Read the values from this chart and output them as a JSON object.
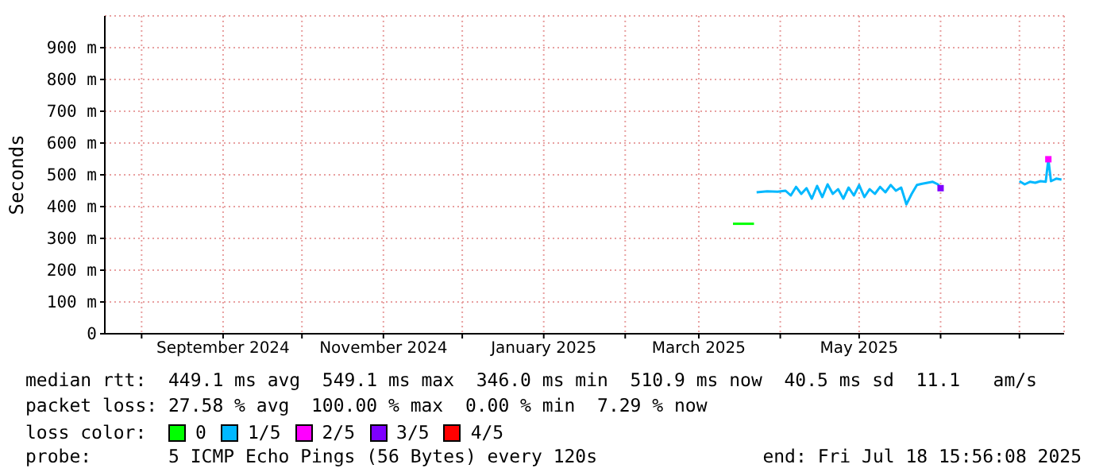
{
  "chart_data": {
    "type": "line",
    "ylabel": "Seconds",
    "legend_title": "loss color:",
    "legend": "bottom",
    "grid": true,
    "marker": "none",
    "line_style": "solid",
    "xlim": [
      "2024-07-18",
      "2025-07-18"
    ],
    "xticks": [
      {
        "value": "2024-08-01",
        "label": null
      },
      {
        "value": "2024-09-01",
        "label": "September 2024"
      },
      {
        "value": "2024-10-01",
        "label": null
      },
      {
        "value": "2024-11-01",
        "label": "November 2024"
      },
      {
        "value": "2024-12-01",
        "label": null
      },
      {
        "value": "2025-01-01",
        "label": "January 2025"
      },
      {
        "value": "2025-02-01",
        "label": null
      },
      {
        "value": "2025-03-01",
        "label": "March 2025"
      },
      {
        "value": "2025-04-01",
        "label": null
      },
      {
        "value": "2025-05-01",
        "label": "May 2025"
      },
      {
        "value": "2025-06-01",
        "label": null
      },
      {
        "value": "2025-07-01",
        "label": null
      }
    ],
    "ylim": [
      0,
      1000
    ],
    "yticks": [
      {
        "value": 0,
        "label": "0"
      },
      {
        "value": 100,
        "label": "100 m"
      },
      {
        "value": 200,
        "label": "200 m"
      },
      {
        "value": 300,
        "label": "300 m"
      },
      {
        "value": 400,
        "label": "400 m"
      },
      {
        "value": 500,
        "label": "500 m"
      },
      {
        "value": 600,
        "label": "600 m"
      },
      {
        "value": 700,
        "label": "700 m"
      },
      {
        "value": 800,
        "label": "800 m"
      },
      {
        "value": 900,
        "label": "900 m"
      }
    ],
    "series": [
      {
        "name": "0",
        "color": "#00ff00",
        "x": [
          "2025-03-14",
          "2025-03-18",
          "2025-03-22"
        ],
        "values": [
          346,
          346,
          346
        ]
      },
      {
        "name": "1/5",
        "color": "#00b8ff",
        "x": [
          "2025-03-23",
          "2025-03-27",
          "2025-03-31",
          "2025-04-03",
          "2025-04-05",
          "2025-04-07",
          "2025-04-09",
          "2025-04-11",
          "2025-04-13",
          "2025-04-15",
          "2025-04-17",
          "2025-04-19",
          "2025-04-21",
          "2025-04-23",
          "2025-04-25",
          "2025-04-27",
          "2025-04-29",
          "2025-05-01",
          "2025-05-03",
          "2025-05-05",
          "2025-05-07",
          "2025-05-09",
          "2025-05-11",
          "2025-05-13",
          "2025-05-15",
          "2025-05-17",
          "2025-05-19",
          "2025-05-21",
          "2025-05-23",
          "2025-05-25",
          "2025-05-27",
          "2025-05-29",
          "2025-05-31",
          "2025-06-01",
          "2025-06-15",
          "2025-07-01",
          "2025-07-03",
          "2025-07-05",
          "2025-07-07",
          "2025-07-09",
          "2025-07-11",
          "2025-07-12",
          "2025-07-13",
          "2025-07-15",
          "2025-07-17"
        ],
        "values": [
          445,
          448,
          447,
          450,
          435,
          462,
          440,
          458,
          425,
          465,
          430,
          470,
          440,
          455,
          425,
          460,
          435,
          468,
          430,
          455,
          440,
          462,
          445,
          468,
          450,
          460,
          407,
          440,
          468,
          472,
          475,
          478,
          470,
          458,
          null,
          480,
          470,
          478,
          475,
          480,
          478,
          549,
          480,
          488,
          485
        ]
      },
      {
        "name": "2/5",
        "color": "#ff00ff",
        "marker": "square",
        "x": [
          "2025-07-12"
        ],
        "values": [
          549
        ]
      },
      {
        "name": "3/5",
        "color": "#7e00ff",
        "marker": "square",
        "x": [
          "2025-06-01"
        ],
        "values": [
          458
        ]
      },
      {
        "name": "4/5",
        "color": "#ff0000"
      }
    ],
    "annotations": [
      "median rtt:  449.1 ms avg  549.1 ms max  346.0 ms min  510.9 ms now  40.5 ms sd  11.1   am/s",
      "packet loss: 27.58 % avg  100.00 % max  0.00 % min  7.29 % now",
      "probe:       5 ICMP Echo Pings (56 Bytes) every 120s",
      "end: Fri Jul 18 15:56:08 2025"
    ]
  }
}
